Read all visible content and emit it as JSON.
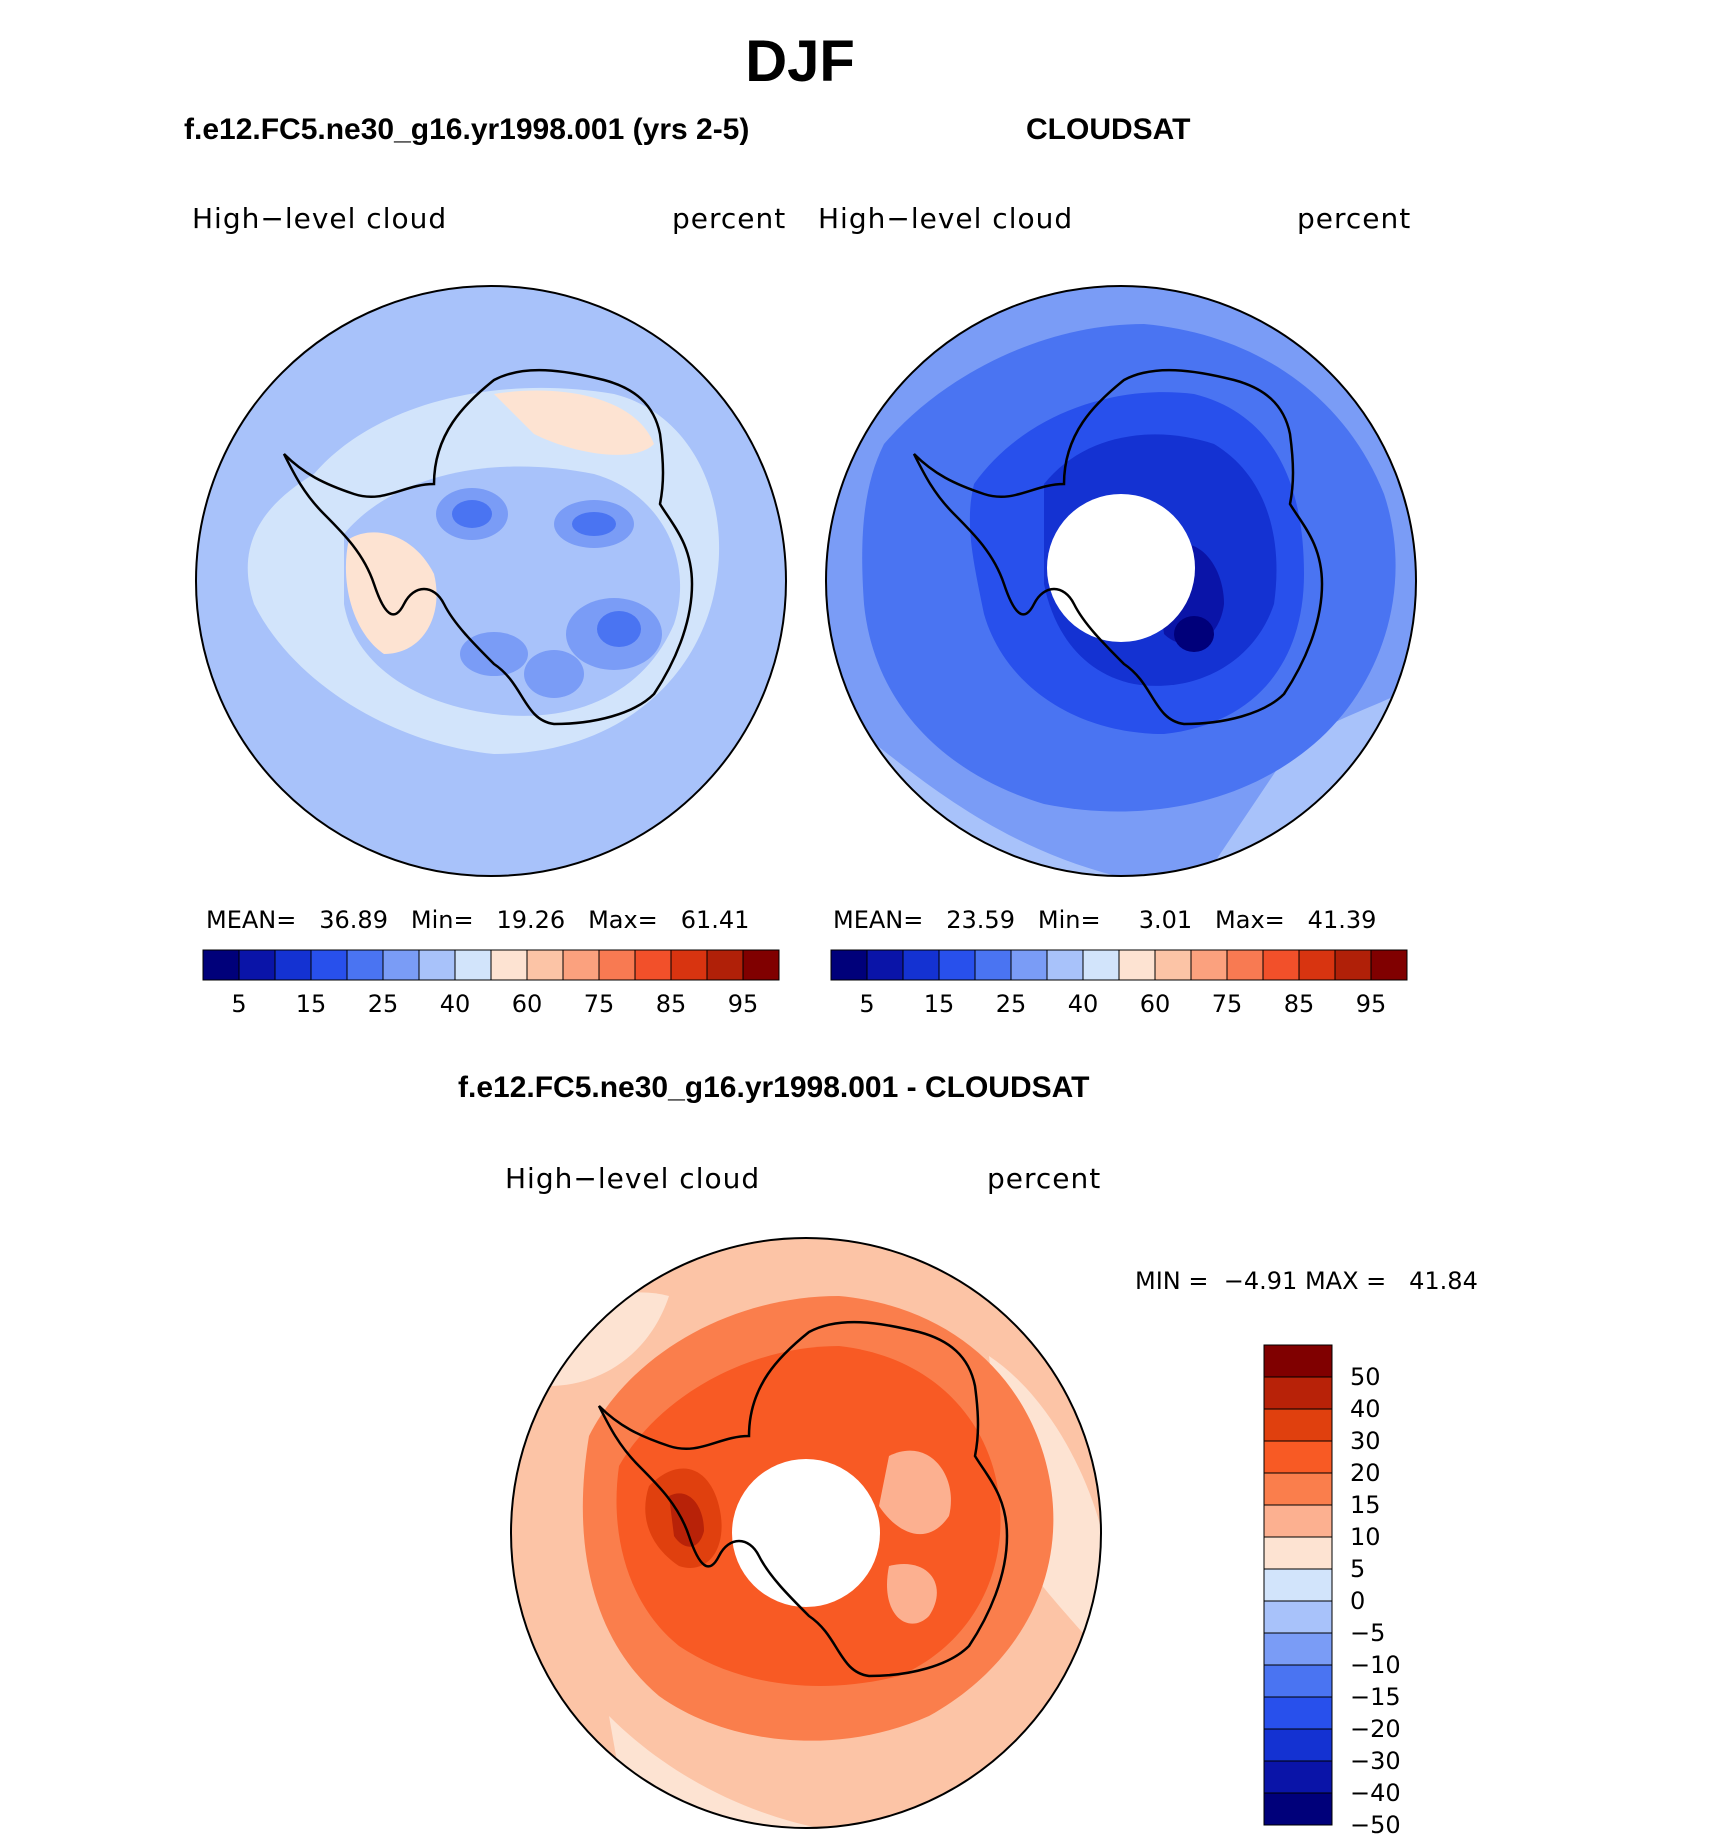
{
  "season": "DJF",
  "panels": {
    "model": {
      "title": "f.e12.FC5.ne30_g16.yr1998.001 (yrs 2-5)",
      "variable": "High−level cloud",
      "units": "percent",
      "mean_label": "MEAN=",
      "mean": "36.89",
      "min_label": "Min=",
      "min": "19.26",
      "max_label": "Max=",
      "max": "61.41"
    },
    "obs": {
      "title": "CLOUDSAT",
      "variable": "High−level cloud",
      "units": "percent",
      "mean_label": "MEAN=",
      "mean": "23.59",
      "min_label": "Min=",
      "min": "3.01",
      "max_label": "Max=",
      "max": "41.39"
    },
    "diff": {
      "title": "f.e12.FC5.ne30_g16.yr1998.001 - CLOUDSAT",
      "variable": "High−level cloud",
      "units": "percent",
      "min_label": "MIN =",
      "min": "−4.91",
      "max_label": "MAX =",
      "max": "41.84"
    }
  },
  "colorbar_abs": {
    "colors": [
      "#00007a",
      "#0a14a8",
      "#1432d2",
      "#2850ec",
      "#4a74f2",
      "#7a9cf6",
      "#a8c2fa",
      "#d2e4fb",
      "#fde3d2",
      "#fcc4a6",
      "#fba17e",
      "#f87a52",
      "#f2502a",
      "#d83410",
      "#b02008",
      "#800000"
    ],
    "tick_labels": [
      "5",
      "15",
      "25",
      "40",
      "60",
      "75",
      "85",
      "95"
    ]
  },
  "colorbar_diff": {
    "colors": [
      "#800000",
      "#b82208",
      "#e0400e",
      "#f85a24",
      "#fa7e4c",
      "#fcb090",
      "#fde3d2",
      "#d2e4fb",
      "#a8c2fa",
      "#7a9cf6",
      "#4a74f2",
      "#2850ec",
      "#1432d2",
      "#0a14a8",
      "#00007a"
    ],
    "tick_labels": [
      "50",
      "40",
      "30",
      "20",
      "15",
      "10",
      "5",
      "0",
      "−5",
      "−10",
      "−15",
      "−20",
      "−30",
      "−40",
      "−50"
    ]
  },
  "map_fields": {
    "model_background": "#a8c2fa",
    "obs_background": "#4a74f2",
    "diff_background": "#fcc4a6"
  }
}
